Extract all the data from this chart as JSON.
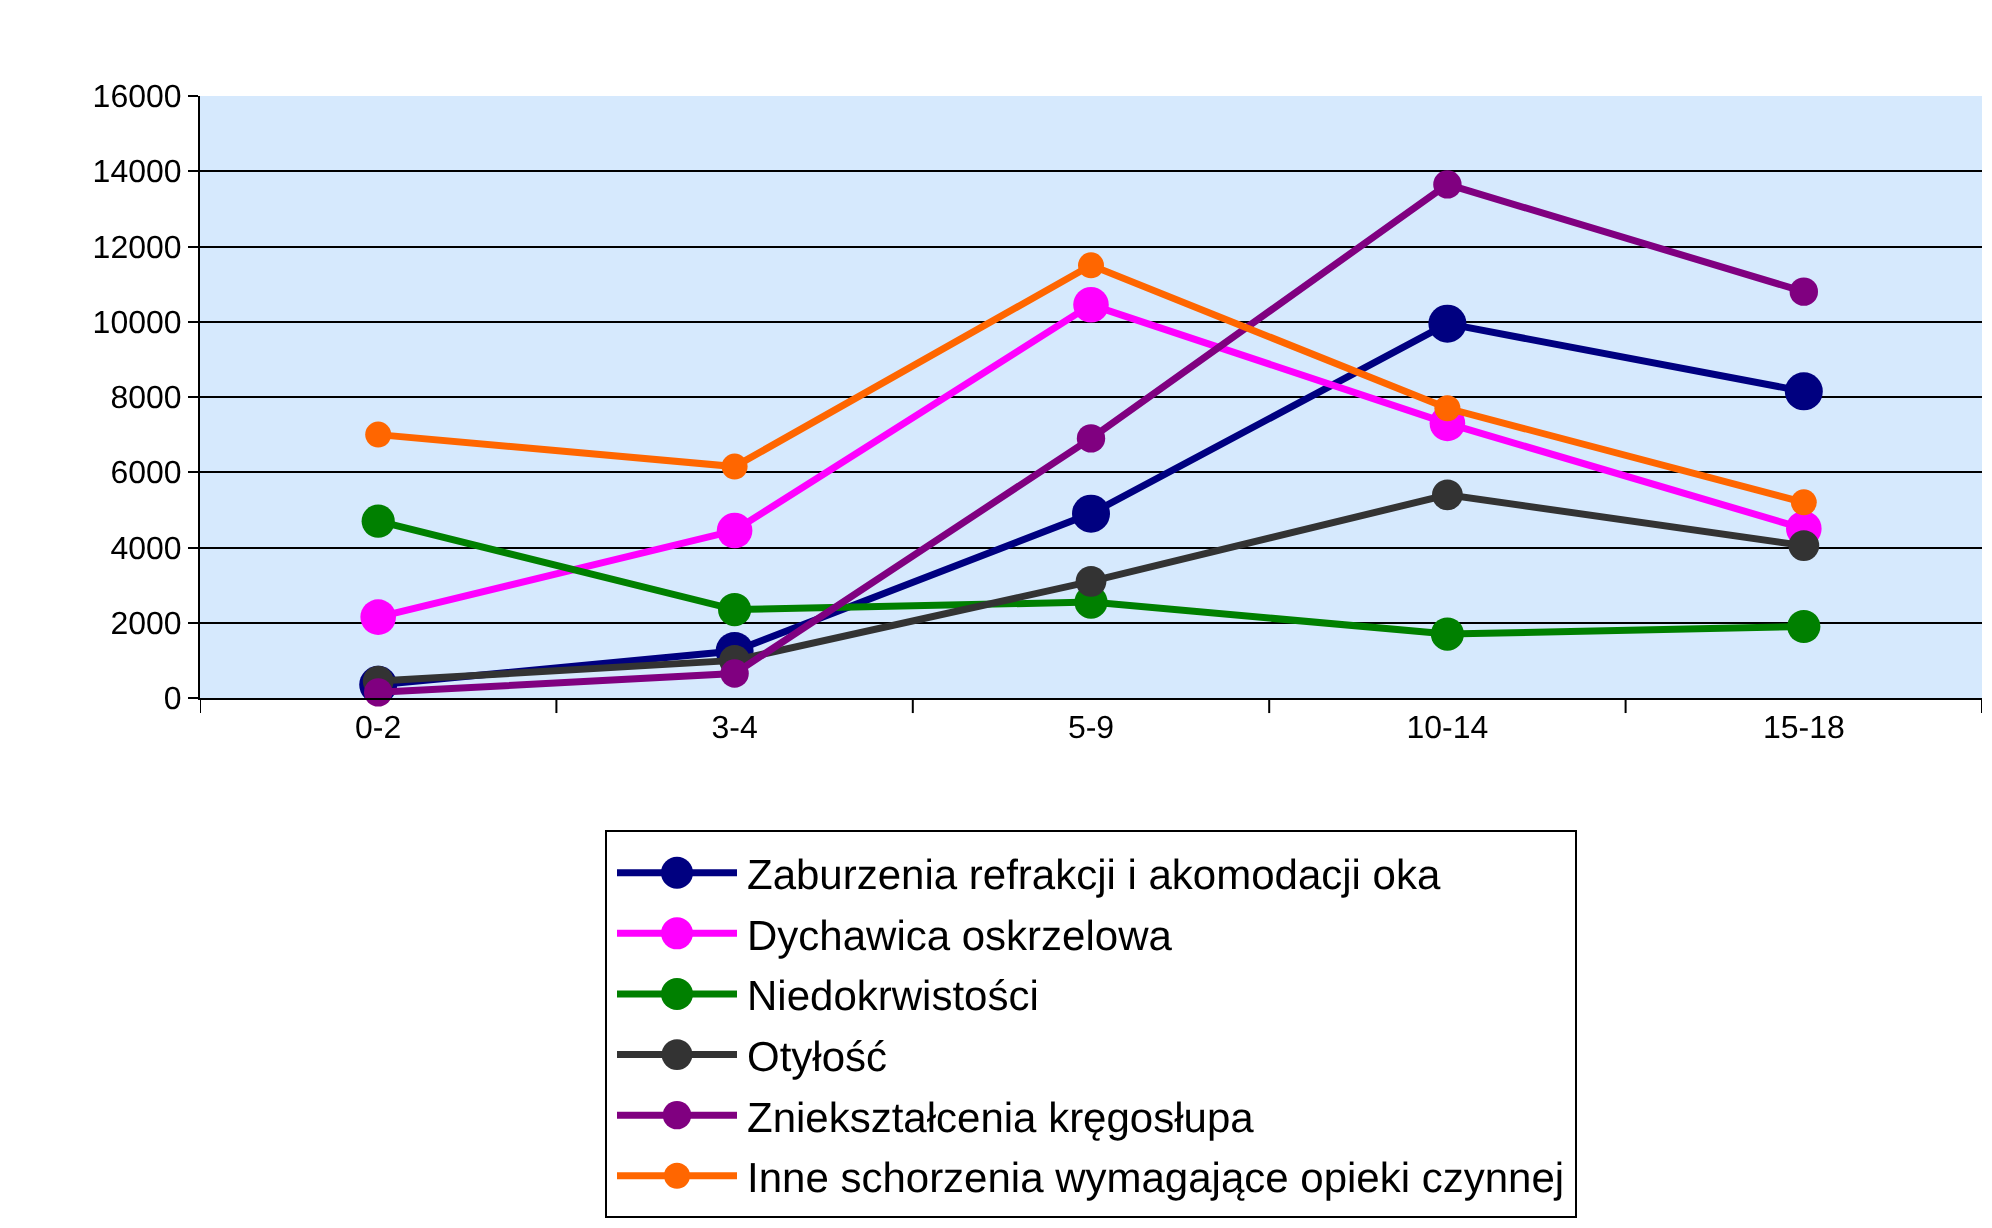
{
  "chart_data": {
    "type": "line",
    "categories": [
      "0-2",
      "3-4",
      "5-9",
      "10-14",
      "15-18"
    ],
    "series": [
      {
        "name": "Zaburzenia refrakcji i akomodacji oka",
        "color": "#000080",
        "values": [
          350,
          1250,
          4900,
          9950,
          8150
        ]
      },
      {
        "name": "Dychawica oskrzelowa",
        "color": "#ff00ff",
        "values": [
          2150,
          4450,
          10450,
          7300,
          4500
        ]
      },
      {
        "name": "Niedokrwistości",
        "color": "#008000",
        "values": [
          4700,
          2350,
          2550,
          1700,
          1900
        ]
      },
      {
        "name": "Otyłość",
        "color": "#333333",
        "values": [
          450,
          1000,
          3100,
          5400,
          4050
        ]
      },
      {
        "name": "Zniekształcenia kręgosłupa",
        "color": "#800080",
        "values": [
          150,
          650,
          6900,
          13650,
          10800
        ]
      },
      {
        "name": "Inne schorzenia wymagające opieki czynnej",
        "color": "#ff6600",
        "values": [
          7000,
          6150,
          11500,
          7700,
          5200
        ]
      }
    ],
    "ylim": [
      0,
      16000
    ],
    "yticks": [
      0,
      2000,
      4000,
      6000,
      8000,
      10000,
      12000,
      14000,
      16000
    ],
    "grid": "y",
    "legend": "bottom",
    "marker": "circle",
    "line_style": "solid"
  }
}
